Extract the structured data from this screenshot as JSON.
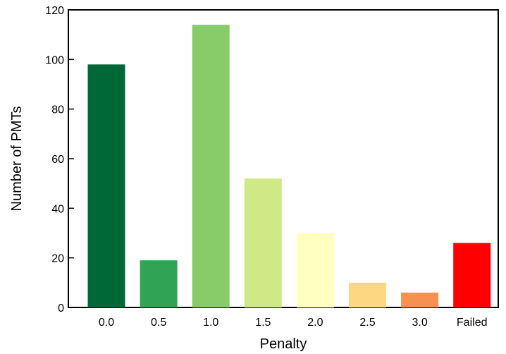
{
  "chart_data": {
    "type": "bar",
    "title": "",
    "xlabel": "Penalty",
    "ylabel": "Number of PMTs",
    "categories": [
      "0.0",
      "0.5",
      "1.0",
      "1.5",
      "2.0",
      "2.5",
      "3.0",
      "Failed"
    ],
    "values": [
      98,
      19,
      114,
      52,
      30,
      10,
      6,
      26
    ],
    "colors": [
      "#006837",
      "#31a354",
      "#87cc68",
      "#d0e987",
      "#ffffc0",
      "#fed880",
      "#f89051",
      "#ff0000"
    ],
    "ylim": [
      0,
      120
    ],
    "yticks": [
      "0",
      "20",
      "40",
      "60",
      "80",
      "100",
      "120"
    ],
    "grid": false,
    "legend": "none"
  }
}
